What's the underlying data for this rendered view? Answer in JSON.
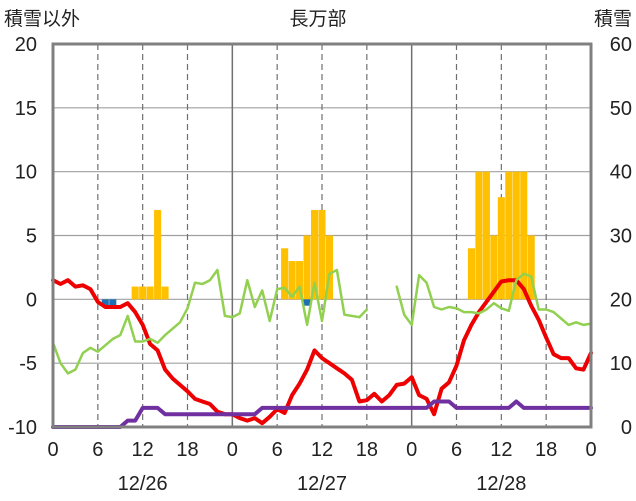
{
  "chart_data": {
    "type": "bar+line",
    "title": "長万部",
    "left_axis_label": "積雪以外",
    "right_axis_label": "積雪",
    "left_ylim": [
      -10,
      20
    ],
    "left_ticks": [
      20,
      15,
      10,
      5,
      0,
      -5,
      -10
    ],
    "right_ylim": [
      0,
      60
    ],
    "right_ticks": [
      60,
      50,
      40,
      30,
      20,
      10,
      0
    ],
    "x_range_hours": [
      0,
      72
    ],
    "x_tick_labels": [
      "0",
      "6",
      "12",
      "18",
      "0",
      "6",
      "12",
      "18",
      "0",
      "6",
      "12",
      "18",
      "0"
    ],
    "date_labels": [
      {
        "label": "12/26",
        "hour": 12
      },
      {
        "label": "12/27",
        "hour": 36
      },
      {
        "label": "12/28",
        "hour": 60
      }
    ],
    "colors": {
      "precip": "#FFC000",
      "negative_bar": "#1F6FB5",
      "red_line": "#EE0000",
      "green_line": "#92D050",
      "purple_line": "#7030A0",
      "frame": "#808080"
    },
    "bars": [
      {
        "h": 7,
        "v": -0.5,
        "c": "negative_bar"
      },
      {
        "h": 8,
        "v": -0.5,
        "c": "negative_bar"
      },
      {
        "h": 11,
        "v": 1,
        "c": "precip"
      },
      {
        "h": 12,
        "v": 1,
        "c": "precip"
      },
      {
        "h": 13,
        "v": 1,
        "c": "precip"
      },
      {
        "h": 14,
        "v": 7,
        "c": "precip"
      },
      {
        "h": 15,
        "v": 1,
        "c": "precip"
      },
      {
        "h": 31,
        "v": 4,
        "c": "precip"
      },
      {
        "h": 32,
        "v": 3,
        "c": "precip"
      },
      {
        "h": 33,
        "v": 3,
        "c": "precip"
      },
      {
        "h": 34,
        "v": 5,
        "c": "precip"
      },
      {
        "h": 35,
        "v": 7,
        "c": "precip"
      },
      {
        "h": 36,
        "v": 7,
        "c": "precip"
      },
      {
        "h": 37,
        "v": 5,
        "c": "precip"
      },
      {
        "h": 34,
        "v": -0.5,
        "c": "negative_bar"
      },
      {
        "h": 56,
        "v": 4,
        "c": "precip"
      },
      {
        "h": 57,
        "v": 10,
        "c": "precip"
      },
      {
        "h": 58,
        "v": 10,
        "c": "precip"
      },
      {
        "h": 59,
        "v": 5,
        "c": "precip"
      },
      {
        "h": 60,
        "v": 8,
        "c": "precip"
      },
      {
        "h": 61,
        "v": 10,
        "c": "precip"
      },
      {
        "h": 62,
        "v": 10,
        "c": "precip"
      },
      {
        "h": 63,
        "v": 10,
        "c": "precip"
      },
      {
        "h": 64,
        "v": 5,
        "c": "precip"
      }
    ],
    "series": [
      {
        "color": "red_line",
        "axis": "left",
        "width": 4,
        "points": [
          [
            0,
            1.5
          ],
          [
            1,
            1.2
          ],
          [
            2,
            1.5
          ],
          [
            3,
            1.0
          ],
          [
            4,
            1.1
          ],
          [
            5,
            0.8
          ],
          [
            6,
            -0.2
          ],
          [
            7,
            -0.6
          ],
          [
            8,
            -0.6
          ],
          [
            9,
            -0.6
          ],
          [
            10,
            -0.3
          ],
          [
            11,
            -1.0
          ],
          [
            12,
            -2.0
          ],
          [
            13,
            -3.5
          ],
          [
            14,
            -4.0
          ],
          [
            15,
            -5.5
          ],
          [
            16,
            -6.2
          ],
          [
            17,
            -6.7
          ],
          [
            18,
            -7.2
          ],
          [
            19,
            -7.8
          ],
          [
            20,
            -8.0
          ],
          [
            21,
            -8.2
          ],
          [
            22,
            -8.8
          ],
          [
            23,
            -9.0
          ],
          [
            24,
            -9.0
          ],
          [
            25,
            -9.3
          ],
          [
            26,
            -9.5
          ],
          [
            27,
            -9.3
          ],
          [
            28,
            -9.7
          ],
          [
            29,
            -9.2
          ],
          [
            30,
            -8.6
          ],
          [
            31,
            -8.9
          ],
          [
            32,
            -7.5
          ],
          [
            33,
            -6.6
          ],
          [
            34,
            -5.5
          ],
          [
            35,
            -4.0
          ],
          [
            36,
            -4.6
          ],
          [
            37,
            -5.0
          ],
          [
            38,
            -5.4
          ],
          [
            39,
            -5.8
          ],
          [
            40,
            -6.3
          ],
          [
            41,
            -8.0
          ],
          [
            42,
            -7.9
          ],
          [
            43,
            -7.4
          ],
          [
            44,
            -8.0
          ],
          [
            45,
            -7.5
          ],
          [
            46,
            -6.7
          ],
          [
            47,
            -6.6
          ],
          [
            48,
            -6.1
          ],
          [
            49,
            -7.5
          ],
          [
            50,
            -7.8
          ],
          [
            51,
            -9.0
          ],
          [
            52,
            -7.0
          ],
          [
            53,
            -6.5
          ],
          [
            54,
            -5.2
          ],
          [
            55,
            -3.2
          ],
          [
            56,
            -2.0
          ],
          [
            57,
            -1.0
          ],
          [
            58,
            -0.2
          ],
          [
            59,
            0.6
          ],
          [
            60,
            1.4
          ],
          [
            61,
            1.5
          ],
          [
            62,
            1.5
          ],
          [
            63,
            0.8
          ],
          [
            64,
            -0.5
          ],
          [
            65,
            -1.6
          ],
          [
            66,
            -3.0
          ],
          [
            67,
            -4.3
          ],
          [
            68,
            -4.6
          ],
          [
            69,
            -4.6
          ],
          [
            70,
            -5.4
          ],
          [
            71,
            -5.5
          ],
          [
            72,
            -4.2
          ]
        ]
      },
      {
        "color": "green_line",
        "axis": "left",
        "width": 2.5,
        "segments": [
          [
            [
              0,
              -3.4
            ],
            [
              1,
              -5.0
            ],
            [
              2,
              -5.8
            ],
            [
              3,
              -5.5
            ],
            [
              4,
              -4.2
            ],
            [
              5,
              -3.8
            ],
            [
              6,
              -4.1
            ],
            [
              7,
              -3.6
            ],
            [
              8,
              -3.1
            ],
            [
              9,
              -2.8
            ],
            [
              10,
              -1.3
            ],
            [
              11,
              -3.3
            ],
            [
              12,
              -3.3
            ],
            [
              13,
              -3.1
            ],
            [
              14,
              -3.4
            ],
            [
              15,
              -2.8
            ],
            [
              16,
              -2.3
            ],
            [
              17,
              -1.8
            ],
            [
              18,
              -0.7
            ],
            [
              19,
              1.3
            ],
            [
              20,
              1.2
            ],
            [
              21,
              1.5
            ],
            [
              22,
              2.3
            ],
            [
              23,
              -1.3
            ],
            [
              24,
              -1.4
            ],
            [
              25,
              -1.1
            ],
            [
              26,
              1.5
            ],
            [
              27,
              -0.6
            ],
            [
              28,
              0.7
            ],
            [
              29,
              -1.7
            ],
            [
              30,
              0.8
            ],
            [
              31,
              0.9
            ],
            [
              32,
              0.2
            ],
            [
              33,
              1.0
            ],
            [
              34,
              -2.0
            ],
            [
              35,
              1.3
            ],
            [
              36,
              -1.7
            ],
            [
              37,
              2.0
            ],
            [
              38,
              2.3
            ],
            [
              39,
              -1.2
            ],
            [
              40,
              -1.3
            ],
            [
              41,
              -1.4
            ],
            [
              42,
              -0.8
            ]
          ],
          [
            [
              46,
              1.0
            ],
            [
              47,
              -1.2
            ],
            [
              48,
              -2.0
            ],
            [
              49,
              1.9
            ],
            [
              50,
              1.3
            ],
            [
              51,
              -0.6
            ],
            [
              52,
              -0.8
            ],
            [
              53,
              -0.6
            ],
            [
              54,
              -0.7
            ],
            [
              55,
              -1.0
            ],
            [
              56,
              -1.0
            ],
            [
              57,
              -1.1
            ],
            [
              58,
              -0.8
            ],
            [
              59,
              -0.3
            ],
            [
              60,
              -0.7
            ],
            [
              61,
              -0.9
            ],
            [
              62,
              1.5
            ],
            [
              63,
              2.0
            ],
            [
              64,
              1.8
            ],
            [
              65,
              -0.8
            ],
            [
              66,
              -0.8
            ],
            [
              67,
              -1.0
            ],
            [
              68,
              -1.5
            ],
            [
              69,
              -2.0
            ],
            [
              70,
              -1.8
            ],
            [
              71,
              -2.0
            ],
            [
              72,
              -1.9
            ]
          ]
        ]
      },
      {
        "color": "purple_line",
        "axis": "right",
        "width": 4,
        "points": [
          [
            0,
            0
          ],
          [
            9,
            0
          ],
          [
            10,
            1
          ],
          [
            11,
            1
          ],
          [
            12,
            3
          ],
          [
            13,
            3
          ],
          [
            14,
            3
          ],
          [
            15,
            2
          ],
          [
            20,
            2
          ],
          [
            27,
            2
          ],
          [
            28,
            3
          ],
          [
            50,
            3
          ],
          [
            51,
            4
          ],
          [
            53,
            4
          ],
          [
            54,
            3
          ],
          [
            61,
            3
          ],
          [
            62,
            4
          ],
          [
            63,
            3
          ],
          [
            72,
            3
          ]
        ]
      }
    ]
  }
}
